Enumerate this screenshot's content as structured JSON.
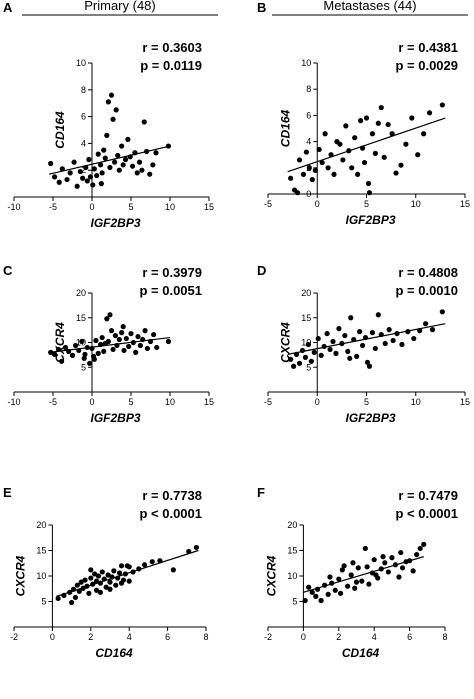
{
  "headers": {
    "primary": "Primary (48)",
    "metastases": "Metastases (44)"
  },
  "colors": {
    "ink": "#000000",
    "background": "#ffffff"
  },
  "chart_data": [
    {
      "type": "scatter",
      "panel": "A",
      "group": "primary",
      "xlabel": "IGF2BP3",
      "ylabel": "CD164",
      "r_text": "r = 0.3603",
      "p_text": "p = 0.0119",
      "xlim": [
        -10,
        15
      ],
      "ylim": [
        0,
        10
      ],
      "xticks": [
        -10,
        -5,
        0,
        5,
        10,
        15
      ],
      "yticks": [
        2,
        4,
        6,
        8,
        10
      ],
      "fit": {
        "x": [
          -5.5,
          10
        ],
        "y": [
          1.7,
          3.8
        ]
      },
      "points": [
        [
          -5.3,
          2.5
        ],
        [
          -4.8,
          1.5
        ],
        [
          -4.2,
          1.1
        ],
        [
          -3.8,
          2.1
        ],
        [
          -3.2,
          1.3
        ],
        [
          -2.8,
          1.8
        ],
        [
          -2.3,
          2.6
        ],
        [
          -1.9,
          0.8
        ],
        [
          -1.5,
          1.9
        ],
        [
          -1.2,
          1.4
        ],
        [
          -0.8,
          2.2
        ],
        [
          -0.6,
          1.2
        ],
        [
          -0.4,
          2.8
        ],
        [
          -0.2,
          1.5
        ],
        [
          0.1,
          0.9
        ],
        [
          0.3,
          2.1
        ],
        [
          0.6,
          1.6
        ],
        [
          0.8,
          3.2
        ],
        [
          1.1,
          2.4
        ],
        [
          1.3,
          1.8
        ],
        [
          1.5,
          3.5
        ],
        [
          1.7,
          2.9
        ],
        [
          1.9,
          4.6
        ],
        [
          2.1,
          7.1
        ],
        [
          2.3,
          2.2
        ],
        [
          2.5,
          7.6
        ],
        [
          2.7,
          5.8
        ],
        [
          2.9,
          2.6
        ],
        [
          3.1,
          6.5
        ],
        [
          3.3,
          3.1
        ],
        [
          3.5,
          2.0
        ],
        [
          3.8,
          3.8
        ],
        [
          4.0,
          2.4
        ],
        [
          4.3,
          2.8
        ],
        [
          4.6,
          4.3
        ],
        [
          4.9,
          3.0
        ],
        [
          5.2,
          2.3
        ],
        [
          5.5,
          3.3
        ],
        [
          5.8,
          1.8
        ],
        [
          6.1,
          2.6
        ],
        [
          6.4,
          2.0
        ],
        [
          6.7,
          5.6
        ],
        [
          7.0,
          3.4
        ],
        [
          7.4,
          1.7
        ],
        [
          7.8,
          2.4
        ],
        [
          8.2,
          3.3
        ],
        [
          9.8,
          3.8
        ],
        [
          1.2,
          1.0
        ]
      ]
    },
    {
      "type": "scatter",
      "panel": "B",
      "group": "metastases",
      "xlabel": "IGF2BP3",
      "ylabel": "CD164",
      "r_text": "r = 0.4381",
      "p_text": "p = 0.0029",
      "xlim": [
        -5,
        15
      ],
      "ylim": [
        0,
        10
      ],
      "xticks": [
        -5,
        0,
        5,
        10,
        15
      ],
      "yticks": [
        0,
        2,
        4,
        6,
        8,
        10
      ],
      "xtick_labels": [
        "-5",
        "0",
        "5",
        "10",
        "15"
      ],
      "fit": {
        "x": [
          -3,
          13
        ],
        "y": [
          1.7,
          5.8
        ]
      },
      "points": [
        [
          -2.7,
          1.2
        ],
        [
          -2.3,
          0.3
        ],
        [
          -2.0,
          0.1
        ],
        [
          -1.8,
          2.6
        ],
        [
          -1.4,
          1.5
        ],
        [
          -1.1,
          3.2
        ],
        [
          -0.8,
          2.0
        ],
        [
          -0.5,
          1.1
        ],
        [
          -0.2,
          1.8
        ],
        [
          0.2,
          3.4
        ],
        [
          0.5,
          2.4
        ],
        [
          0.8,
          4.6
        ],
        [
          1.1,
          2.0
        ],
        [
          1.4,
          3.0
        ],
        [
          1.7,
          1.5
        ],
        [
          2.0,
          4.0
        ],
        [
          2.3,
          3.8
        ],
        [
          2.6,
          2.6
        ],
        [
          2.9,
          5.2
        ],
        [
          3.2,
          3.3
        ],
        [
          3.5,
          2.0
        ],
        [
          3.8,
          4.3
        ],
        [
          4.1,
          1.5
        ],
        [
          4.4,
          5.6
        ],
        [
          4.6,
          3.5
        ],
        [
          4.8,
          2.4
        ],
        [
          5.0,
          5.8
        ],
        [
          5.2,
          0.8
        ],
        [
          5.3,
          0.1
        ],
        [
          5.6,
          4.6
        ],
        [
          5.9,
          3.1
        ],
        [
          6.2,
          5.4
        ],
        [
          6.5,
          6.6
        ],
        [
          6.8,
          2.8
        ],
        [
          7.2,
          5.3
        ],
        [
          7.6,
          4.6
        ],
        [
          8.0,
          1.6
        ],
        [
          8.5,
          2.2
        ],
        [
          9.0,
          3.8
        ],
        [
          9.6,
          5.8
        ],
        [
          10.2,
          3.0
        ],
        [
          10.8,
          4.6
        ],
        [
          11.4,
          6.2
        ],
        [
          12.7,
          6.8
        ]
      ]
    },
    {
      "type": "scatter",
      "panel": "C",
      "group": "primary",
      "xlabel": "IGF2BP3",
      "ylabel": "CXCR4",
      "r_text": "r = 0.3979",
      "p_text": "p = 0.0051",
      "xlim": [
        -10,
        15
      ],
      "ylim": [
        0,
        20
      ],
      "xticks": [
        -10,
        -5,
        0,
        5,
        10,
        15
      ],
      "yticks": [
        5,
        10,
        15,
        20
      ],
      "fit": {
        "x": [
          -5.5,
          10
        ],
        "y": [
          8.0,
          11.0
        ]
      },
      "points": [
        [
          -5.3,
          8.0
        ],
        [
          -4.8,
          7.6
        ],
        [
          -4.3,
          8.6
        ],
        [
          -3.9,
          6.2
        ],
        [
          -3.4,
          9.0
        ],
        [
          -3.0,
          8.2
        ],
        [
          -2.5,
          7.4
        ],
        [
          -2.1,
          9.4
        ],
        [
          -1.7,
          8.4
        ],
        [
          -1.3,
          10.2
        ],
        [
          -0.9,
          7.6
        ],
        [
          -0.6,
          9.0
        ],
        [
          -0.3,
          5.8
        ],
        [
          0.0,
          8.8
        ],
        [
          0.3,
          6.6
        ],
        [
          0.5,
          10.4
        ],
        [
          0.8,
          7.8
        ],
        [
          1.1,
          9.6
        ],
        [
          1.3,
          11.0
        ],
        [
          1.5,
          8.2
        ],
        [
          1.7,
          9.8
        ],
        [
          1.9,
          14.8
        ],
        [
          2.1,
          10.2
        ],
        [
          2.3,
          15.6
        ],
        [
          2.5,
          12.4
        ],
        [
          2.7,
          8.6
        ],
        [
          3.0,
          11.4
        ],
        [
          3.2,
          9.4
        ],
        [
          3.5,
          10.6
        ],
        [
          3.8,
          12.0
        ],
        [
          4.1,
          8.4
        ],
        [
          4.4,
          10.8
        ],
        [
          4.7,
          9.2
        ],
        [
          5.0,
          11.8
        ],
        [
          5.3,
          10.0
        ],
        [
          5.6,
          8.0
        ],
        [
          5.9,
          11.2
        ],
        [
          6.2,
          9.4
        ],
        [
          6.5,
          10.6
        ],
        [
          6.8,
          12.4
        ],
        [
          7.1,
          8.8
        ],
        [
          7.5,
          10.2
        ],
        [
          7.9,
          11.6
        ],
        [
          8.3,
          9.0
        ],
        [
          9.8,
          10.2
        ],
        [
          -1.0,
          6.8
        ],
        [
          4.0,
          13.2
        ],
        [
          0.2,
          7.2
        ]
      ]
    },
    {
      "type": "scatter",
      "panel": "D",
      "group": "metastases",
      "xlabel": "IGF2BP3",
      "ylabel": "CXCR4",
      "r_text": "r = 0.4808",
      "p_text": "p = 0.0010",
      "xlim": [
        -5,
        15
      ],
      "ylim": [
        0,
        20
      ],
      "xticks": [
        -5,
        0,
        5,
        10,
        15
      ],
      "yticks": [
        5,
        10,
        15,
        20
      ],
      "xtick_labels": [
        "-5",
        "0",
        "5",
        "10",
        "15"
      ],
      "fit": {
        "x": [
          -3,
          13
        ],
        "y": [
          7.6,
          13.8
        ]
      },
      "points": [
        [
          -2.7,
          6.6
        ],
        [
          -2.4,
          5.2
        ],
        [
          -2.1,
          7.6
        ],
        [
          -1.8,
          5.8
        ],
        [
          -1.5,
          8.4
        ],
        [
          -1.2,
          7.0
        ],
        [
          -0.9,
          9.6
        ],
        [
          -0.6,
          6.2
        ],
        [
          -0.3,
          8.0
        ],
        [
          0.1,
          10.8
        ],
        [
          0.4,
          7.4
        ],
        [
          0.7,
          9.2
        ],
        [
          1.0,
          11.8
        ],
        [
          1.3,
          8.6
        ],
        [
          1.6,
          10.2
        ],
        [
          1.9,
          7.8
        ],
        [
          2.2,
          12.8
        ],
        [
          2.5,
          9.8
        ],
        [
          2.8,
          11.4
        ],
        [
          3.1,
          8.2
        ],
        [
          3.4,
          15.0
        ],
        [
          3.7,
          10.6
        ],
        [
          4.0,
          7.2
        ],
        [
          4.3,
          12.2
        ],
        [
          4.6,
          9.4
        ],
        [
          4.9,
          11.0
        ],
        [
          5.1,
          6.0
        ],
        [
          5.3,
          5.2
        ],
        [
          5.6,
          12.0
        ],
        [
          5.9,
          8.8
        ],
        [
          6.2,
          15.6
        ],
        [
          6.5,
          11.6
        ],
        [
          6.9,
          9.8
        ],
        [
          7.3,
          12.6
        ],
        [
          7.7,
          10.4
        ],
        [
          8.1,
          11.8
        ],
        [
          8.6,
          9.6
        ],
        [
          9.2,
          12.2
        ],
        [
          9.8,
          10.8
        ],
        [
          10.4,
          12.4
        ],
        [
          11.0,
          13.8
        ],
        [
          11.7,
          12.6
        ],
        [
          12.7,
          16.2
        ],
        [
          3.3,
          6.8
        ]
      ]
    },
    {
      "type": "scatter",
      "panel": "E",
      "group": "primary",
      "xlabel": "CD164",
      "ylabel": "CXCR4",
      "r_text": "r = 0.7738",
      "p_text": "p < 0.0001",
      "xlim": [
        -2,
        8
      ],
      "ylim": [
        0,
        20
      ],
      "xticks": [
        -2,
        0,
        2,
        4,
        6,
        8
      ],
      "yticks": [
        5,
        10,
        15,
        20
      ],
      "fit": {
        "x": [
          0.2,
          7.6
        ],
        "y": [
          6.0,
          15.0
        ]
      },
      "points": [
        [
          0.3,
          5.6
        ],
        [
          0.6,
          6.2
        ],
        [
          0.9,
          6.8
        ],
        [
          1.1,
          7.4
        ],
        [
          1.2,
          5.8
        ],
        [
          1.3,
          8.2
        ],
        [
          1.4,
          7.0
        ],
        [
          1.5,
          8.8
        ],
        [
          1.6,
          7.6
        ],
        [
          1.7,
          9.2
        ],
        [
          1.8,
          8.0
        ],
        [
          1.9,
          6.6
        ],
        [
          2.0,
          9.6
        ],
        [
          2.1,
          8.4
        ],
        [
          2.2,
          10.4
        ],
        [
          2.3,
          9.0
        ],
        [
          2.3,
          7.2
        ],
        [
          2.4,
          10.0
        ],
        [
          2.5,
          8.6
        ],
        [
          2.6,
          10.8
        ],
        [
          2.7,
          9.4
        ],
        [
          2.8,
          7.8
        ],
        [
          2.9,
          10.2
        ],
        [
          3.0,
          8.8
        ],
        [
          3.1,
          9.8
        ],
        [
          3.2,
          11.0
        ],
        [
          3.3,
          8.2
        ],
        [
          3.4,
          9.6
        ],
        [
          3.5,
          10.6
        ],
        [
          3.6,
          8.6
        ],
        [
          3.7,
          9.2
        ],
        [
          3.8,
          10.4
        ],
        [
          3.9,
          12.0
        ],
        [
          4.0,
          9.0
        ],
        [
          4.2,
          10.8
        ],
        [
          4.5,
          11.4
        ],
        [
          4.8,
          12.2
        ],
        [
          5.2,
          12.8
        ],
        [
          5.6,
          13.0
        ],
        [
          6.3,
          11.2
        ],
        [
          7.1,
          14.8
        ],
        [
          7.5,
          15.6
        ],
        [
          1.0,
          4.8
        ],
        [
          2.0,
          11.2
        ],
        [
          3.0,
          7.4
        ],
        [
          3.6,
          12.0
        ],
        [
          2.5,
          6.8
        ],
        [
          4.0,
          11.8
        ]
      ]
    },
    {
      "type": "scatter",
      "panel": "F",
      "group": "metastases",
      "xlabel": "CD164",
      "ylabel": "CXCR4",
      "r_text": "r = 0.7479",
      "p_text": "p < 0.0001",
      "xlim": [
        -2,
        8
      ],
      "ylim": [
        0,
        20
      ],
      "xticks": [
        -2,
        0,
        2,
        4,
        6,
        8
      ],
      "yticks": [
        5,
        10,
        15,
        20
      ],
      "fit": {
        "x": [
          0,
          6.8
        ],
        "y": [
          6.8,
          13.8
        ]
      },
      "points": [
        [
          0.1,
          5.2
        ],
        [
          0.3,
          7.8
        ],
        [
          0.5,
          6.8
        ],
        [
          0.8,
          7.4
        ],
        [
          1.0,
          5.2
        ],
        [
          1.2,
          8.2
        ],
        [
          1.4,
          6.4
        ],
        [
          1.6,
          8.6
        ],
        [
          1.8,
          7.2
        ],
        [
          2.0,
          9.4
        ],
        [
          2.1,
          6.6
        ],
        [
          2.3,
          12.0
        ],
        [
          2.5,
          8.0
        ],
        [
          2.7,
          10.2
        ],
        [
          2.9,
          7.6
        ],
        [
          3.1,
          11.6
        ],
        [
          3.3,
          9.0
        ],
        [
          3.5,
          15.4
        ],
        [
          3.6,
          11.8
        ],
        [
          3.7,
          8.4
        ],
        [
          3.9,
          10.6
        ],
        [
          4.0,
          13.2
        ],
        [
          4.1,
          10.2
        ],
        [
          4.2,
          9.6
        ],
        [
          4.4,
          11.4
        ],
        [
          4.6,
          12.6
        ],
        [
          4.8,
          10.8
        ],
        [
          5.0,
          13.6
        ],
        [
          5.2,
          12.2
        ],
        [
          5.4,
          9.8
        ],
        [
          5.6,
          11.6
        ],
        [
          5.8,
          12.8
        ],
        [
          6.0,
          13.0
        ],
        [
          6.2,
          11.0
        ],
        [
          6.4,
          14.2
        ],
        [
          6.6,
          15.4
        ],
        [
          6.8,
          16.2
        ],
        [
          2.8,
          12.6
        ],
        [
          1.5,
          9.8
        ],
        [
          3.0,
          8.8
        ],
        [
          4.5,
          13.8
        ],
        [
          0.7,
          6.0
        ],
        [
          5.5,
          14.6
        ],
        [
          2.2,
          11.2
        ]
      ]
    }
  ]
}
